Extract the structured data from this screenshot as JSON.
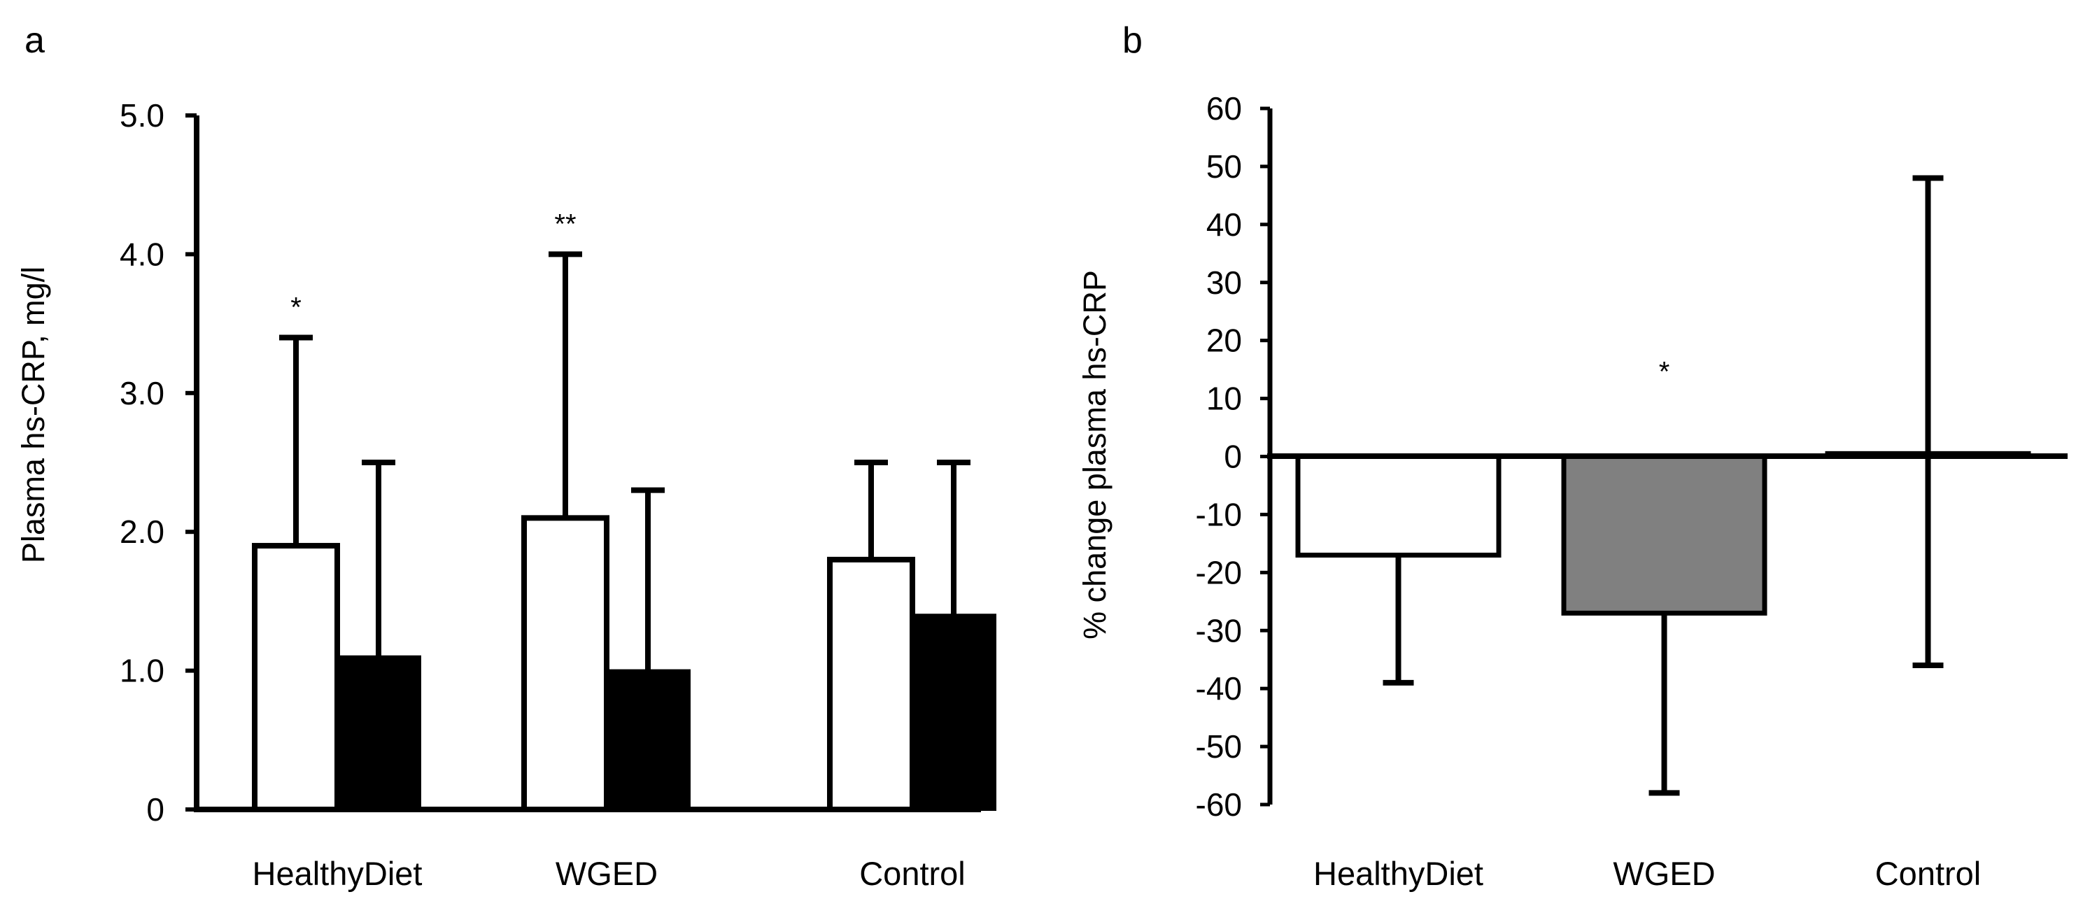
{
  "chart_data": [
    {
      "panel": "a",
      "type": "bar",
      "title": "",
      "xlabel": "",
      "ylabel": "Plasma hs-CRP, mg/l",
      "ylim": [
        0,
        5.0
      ],
      "yticks": [
        "0",
        "1.0",
        "2.0",
        "3.0",
        "4.0",
        "5.0"
      ],
      "categories": [
        "HealthyDiet",
        "WGED",
        "Control"
      ],
      "series": [
        {
          "name": "open bars",
          "color": "#ffffff",
          "values": [
            1.9,
            2.1,
            1.8
          ],
          "error_upper": [
            3.4,
            4.0,
            2.5
          ]
        },
        {
          "name": "filled bars",
          "color": "#000000",
          "values": [
            1.1,
            1.0,
            1.4
          ],
          "error_upper": [
            2.5,
            2.3,
            2.5
          ]
        }
      ],
      "annotations": [
        {
          "category": "HealthyDiet",
          "text": "*"
        },
        {
          "category": "WGED",
          "text": "**"
        }
      ]
    },
    {
      "panel": "b",
      "type": "bar",
      "title": "",
      "xlabel": "",
      "ylabel": "% change plasma hs-CRP",
      "ylim": [
        -60,
        60
      ],
      "yticks": [
        "-60",
        "-50",
        "-40",
        "-30",
        "-20",
        "-10",
        "0",
        "10",
        "20",
        "30",
        "40",
        "50",
        "60"
      ],
      "categories": [
        "HealthyDiet",
        "WGED",
        "Control"
      ],
      "values": [
        -17,
        -27,
        0.5
      ],
      "error_lower": [
        -39,
        -58,
        -36
      ],
      "error_upper": [
        null,
        null,
        48
      ],
      "colors": [
        "#ffffff",
        "#808080",
        "#ffffff"
      ],
      "annotations": [
        {
          "category": "WGED",
          "text": "*"
        }
      ]
    }
  ]
}
